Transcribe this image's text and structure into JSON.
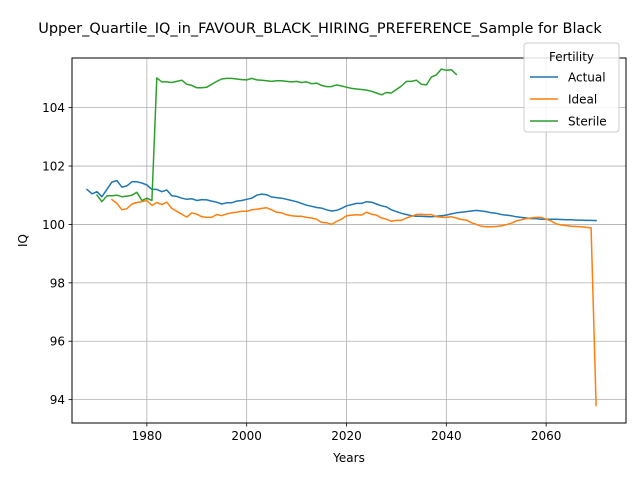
{
  "chart_data": {
    "type": "line",
    "title": "Upper_Quartile_IQ_in_FAVOUR_BLACK_HIRING_PREFERENCE_Sample for Black",
    "xlabel": "Years",
    "ylabel": "IQ",
    "xlim": [
      1965,
      2076
    ],
    "ylim": [
      93.2,
      105.7
    ],
    "xticks": [
      1980,
      2000,
      2020,
      2040,
      2060
    ],
    "yticks": [
      94,
      96,
      98,
      100,
      102,
      104
    ],
    "grid": true,
    "legend": {
      "title": "Fertility",
      "position": "upper right"
    },
    "series": [
      {
        "name": "Actual",
        "color": "#1f77b4",
        "x": [
          1968,
          1969,
          1970,
          1971,
          1972,
          1973,
          1974,
          1975,
          1976,
          1977,
          1978,
          1979,
          1980,
          1981,
          1982,
          1983,
          1984,
          1985,
          1986,
          1987,
          1988,
          1989,
          1990,
          1991,
          1992,
          1993,
          1994,
          1995,
          1996,
          1997,
          1998,
          1999,
          2000,
          2001,
          2002,
          2003,
          2004,
          2005,
          2006,
          2007,
          2008,
          2009,
          2010,
          2011,
          2012,
          2013,
          2014,
          2015,
          2016,
          2017,
          2018,
          2019,
          2020,
          2021,
          2022,
          2023,
          2024,
          2025,
          2026,
          2027,
          2028,
          2029,
          2030,
          2031,
          2032,
          2033,
          2034,
          2035,
          2036,
          2037,
          2038,
          2039,
          2040,
          2041,
          2042,
          2043,
          2044,
          2045,
          2046,
          2047,
          2048,
          2049,
          2050,
          2051,
          2052,
          2053,
          2054,
          2055,
          2056,
          2057,
          2058,
          2059,
          2060,
          2061,
          2062,
          2063,
          2064,
          2065,
          2066,
          2067,
          2068,
          2069,
          2070
        ],
        "y": [
          101.2,
          101.05,
          101.12,
          100.95,
          101.2,
          101.45,
          101.5,
          101.28,
          101.32,
          101.46,
          101.46,
          101.42,
          101.35,
          101.2,
          101.2,
          101.12,
          101.18,
          100.98,
          100.96,
          100.9,
          100.86,
          100.88,
          100.82,
          100.85,
          100.84,
          100.8,
          100.76,
          100.7,
          100.74,
          100.74,
          100.8,
          100.82,
          100.86,
          100.9,
          101.0,
          101.04,
          101.02,
          100.94,
          100.92,
          100.9,
          100.86,
          100.82,
          100.78,
          100.72,
          100.66,
          100.62,
          100.58,
          100.56,
          100.5,
          100.46,
          100.48,
          100.55,
          100.64,
          100.68,
          100.72,
          100.72,
          100.78,
          100.76,
          100.7,
          100.64,
          100.6,
          100.5,
          100.44,
          100.38,
          100.34,
          100.3,
          100.28,
          100.28,
          100.27,
          100.26,
          100.28,
          100.3,
          100.32,
          100.36,
          100.4,
          100.42,
          100.44,
          100.46,
          100.48,
          100.46,
          100.44,
          100.4,
          100.38,
          100.34,
          100.32,
          100.3,
          100.26,
          100.24,
          100.22,
          100.2,
          100.2,
          100.18,
          100.18,
          100.18,
          100.18,
          100.17,
          100.16,
          100.16,
          100.15,
          100.15,
          100.14,
          100.14,
          100.13
        ]
      },
      {
        "name": "Ideal",
        "color": "#ff7f0e",
        "x": [
          1973,
          1974,
          1975,
          1976,
          1977,
          1978,
          1979,
          1980,
          1981,
          1982,
          1983,
          1984,
          1985,
          1986,
          1987,
          1988,
          1989,
          1990,
          1991,
          1992,
          1993,
          1994,
          1995,
          1996,
          1997,
          1998,
          1999,
          2000,
          2001,
          2002,
          2003,
          2004,
          2005,
          2006,
          2007,
          2008,
          2009,
          2010,
          2011,
          2012,
          2013,
          2014,
          2015,
          2016,
          2017,
          2018,
          2019,
          2020,
          2021,
          2022,
          2023,
          2024,
          2025,
          2026,
          2027,
          2028,
          2029,
          2030,
          2031,
          2032,
          2033,
          2034,
          2035,
          2036,
          2037,
          2038,
          2039,
          2040,
          2041,
          2042,
          2043,
          2044,
          2045,
          2046,
          2047,
          2048,
          2049,
          2050,
          2051,
          2052,
          2053,
          2054,
          2055,
          2056,
          2057,
          2058,
          2059,
          2060,
          2061,
          2062,
          2063,
          2064,
          2065,
          2066,
          2067,
          2068,
          2069,
          2070
        ],
        "y": [
          100.85,
          100.72,
          100.5,
          100.54,
          100.7,
          100.75,
          100.78,
          100.82,
          100.65,
          100.75,
          100.68,
          100.76,
          100.55,
          100.45,
          100.35,
          100.25,
          100.4,
          100.35,
          100.26,
          100.24,
          100.24,
          100.34,
          100.3,
          100.36,
          100.4,
          100.42,
          100.45,
          100.45,
          100.5,
          100.52,
          100.55,
          100.57,
          100.5,
          100.42,
          100.4,
          100.33,
          100.3,
          100.28,
          100.28,
          100.24,
          100.22,
          100.18,
          100.07,
          100.06,
          100.0,
          100.1,
          100.18,
          100.3,
          100.32,
          100.33,
          100.32,
          100.42,
          100.35,
          100.32,
          100.22,
          100.18,
          100.11,
          100.14,
          100.14,
          100.22,
          100.28,
          100.34,
          100.35,
          100.33,
          100.34,
          100.26,
          100.25,
          100.24,
          100.26,
          100.22,
          100.17,
          100.15,
          100.06,
          100.0,
          99.94,
          99.92,
          99.92,
          99.93,
          99.95,
          99.99,
          100.04,
          100.12,
          100.16,
          100.2,
          100.22,
          100.24,
          100.24,
          100.18,
          100.12,
          100.02,
          99.98,
          99.96,
          99.94,
          99.93,
          99.92,
          99.9,
          99.88,
          93.8
        ]
      },
      {
        "name": "Sterile",
        "color": "#2ca02c",
        "x": [
          1970,
          1971,
          1972,
          1973,
          1974,
          1975,
          1976,
          1977,
          1978,
          1979,
          1980,
          1981,
          1982,
          1983,
          1984,
          1985,
          1986,
          1987,
          1988,
          1989,
          1990,
          1991,
          1992,
          1993,
          1994,
          1995,
          1996,
          1997,
          1998,
          1999,
          2000,
          2001,
          2002,
          2003,
          2004,
          2005,
          2006,
          2007,
          2008,
          2009,
          2010,
          2011,
          2012,
          2013,
          2014,
          2015,
          2016,
          2017,
          2018,
          2019,
          2020,
          2021,
          2022,
          2023,
          2024,
          2025,
          2026,
          2027,
          2028,
          2029,
          2030,
          2031,
          2032,
          2033,
          2034,
          2035,
          2036,
          2037,
          2038,
          2039,
          2040,
          2041,
          2042
        ],
        "y": [
          101.0,
          100.78,
          100.98,
          100.98,
          101.0,
          100.95,
          100.97,
          101.0,
          101.1,
          100.82,
          100.9,
          100.82,
          105.02,
          104.88,
          104.88,
          104.86,
          104.9,
          104.94,
          104.8,
          104.76,
          104.68,
          104.68,
          104.7,
          104.8,
          104.9,
          104.98,
          105.0,
          105.0,
          104.98,
          104.96,
          104.95,
          105.0,
          104.95,
          104.94,
          104.92,
          104.9,
          104.92,
          104.92,
          104.9,
          104.88,
          104.9,
          104.86,
          104.88,
          104.82,
          104.84,
          104.76,
          104.72,
          104.72,
          104.78,
          104.74,
          104.7,
          104.66,
          104.64,
          104.62,
          104.6,
          104.56,
          104.5,
          104.44,
          104.52,
          104.5,
          104.62,
          104.74,
          104.9,
          104.9,
          104.94,
          104.8,
          104.78,
          105.05,
          105.12,
          105.32,
          105.28,
          105.3,
          105.14
        ]
      }
    ]
  }
}
